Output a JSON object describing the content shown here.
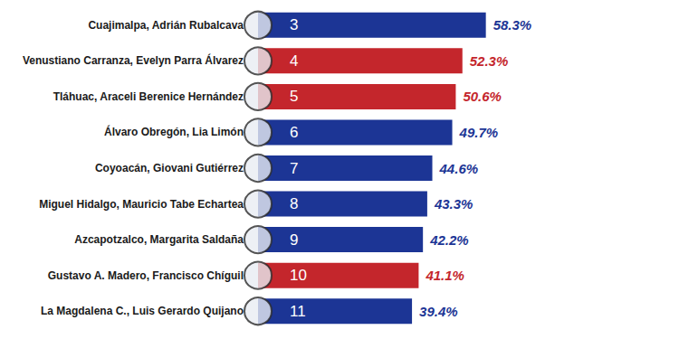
{
  "chart_data": {
    "type": "bar",
    "orientation": "horizontal",
    "categories": [
      "Cuajimalpa, Adrián Rubalcava",
      "Venustiano Carranza, Evelyn Parra Álvarez",
      "Tláhuac, Araceli Berenice Hernández",
      "Álvaro Obregón, Lia Limón",
      "Coyoacán, Giovani Gutiérrez",
      "Miguel Hidalgo, Mauricio Tabe Echartea",
      "Azcapotzalco, Margarita Saldaña",
      "Gustavo A. Madero, Francisco Chíguil",
      "La Magdalena C., Luis Gerardo Quijano"
    ],
    "ranks": [
      3,
      4,
      5,
      6,
      7,
      8,
      9,
      10,
      11
    ],
    "values": [
      58.3,
      52.3,
      50.6,
      49.7,
      44.6,
      43.3,
      42.2,
      41.1,
      39.4
    ],
    "value_labels": [
      "58.3%",
      "52.3%",
      "50.6%",
      "49.7%",
      "44.6%",
      "43.3%",
      "42.2%",
      "41.1%",
      "39.4%"
    ],
    "colors": [
      "#1c3595",
      "#c4262c",
      "#c4262c",
      "#1c3595",
      "#1c3595",
      "#1c3595",
      "#1c3595",
      "#c4262c",
      "#1c3595"
    ],
    "xlim": [
      0,
      60
    ],
    "xticks": [
      0,
      60
    ],
    "grid": false,
    "data_labels": true,
    "tick_labels": "y"
  }
}
